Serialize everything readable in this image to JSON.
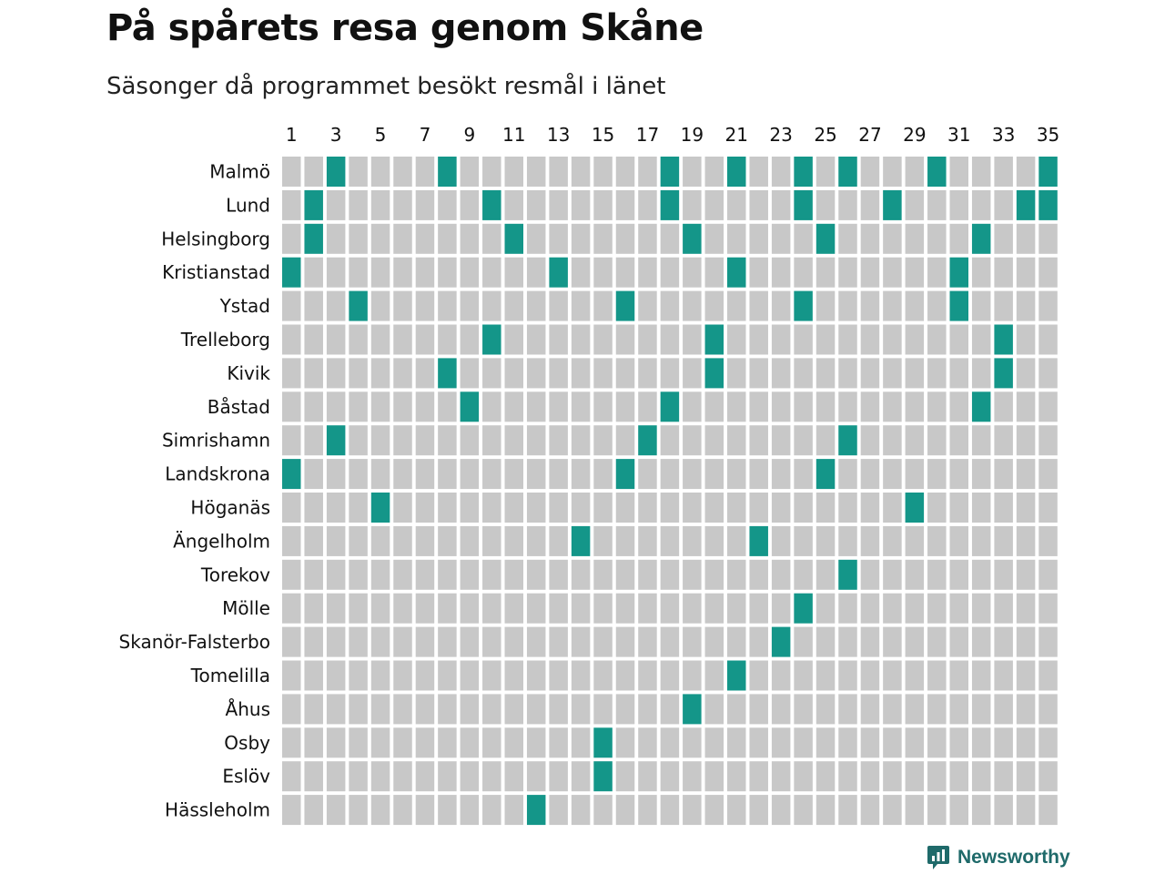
{
  "header": {
    "title": "På spårets resa genom Skåne",
    "subtitle": "Säsonger då programmet besökt resmål i länet"
  },
  "branding": {
    "name": "Newsworthy",
    "icon": "newsworthy-logo-icon"
  },
  "colors": {
    "visited": "#149689",
    "not_visited": "#c8c8c8",
    "brand": "#1f6a6a"
  },
  "chart_data": {
    "type": "heatmap",
    "x_tick_labels": [
      "1",
      "3",
      "5",
      "7",
      "9",
      "11",
      "13",
      "15",
      "17",
      "19",
      "21",
      "23",
      "25",
      "27",
      "29",
      "31",
      "33",
      "35"
    ],
    "seasons": [
      1,
      2,
      3,
      4,
      5,
      6,
      7,
      8,
      9,
      10,
      11,
      12,
      13,
      14,
      15,
      16,
      17,
      18,
      19,
      20,
      21,
      22,
      23,
      24,
      25,
      26,
      27,
      28,
      29,
      30,
      31,
      32,
      33,
      34,
      35
    ],
    "rows": [
      {
        "place": "Malmö",
        "visited_seasons": [
          3,
          8,
          18,
          21,
          24,
          26,
          30,
          35
        ]
      },
      {
        "place": "Lund",
        "visited_seasons": [
          2,
          10,
          18,
          24,
          28,
          34,
          35
        ]
      },
      {
        "place": "Helsingborg",
        "visited_seasons": [
          2,
          11,
          19,
          25,
          32
        ]
      },
      {
        "place": "Kristianstad",
        "visited_seasons": [
          1,
          13,
          21,
          31
        ]
      },
      {
        "place": "Ystad",
        "visited_seasons": [
          4,
          16,
          24,
          31
        ]
      },
      {
        "place": "Trelleborg",
        "visited_seasons": [
          10,
          20,
          33
        ]
      },
      {
        "place": "Kivik",
        "visited_seasons": [
          8,
          20,
          33
        ]
      },
      {
        "place": "Båstad",
        "visited_seasons": [
          9,
          18,
          32
        ]
      },
      {
        "place": "Simrishamn",
        "visited_seasons": [
          3,
          17,
          26
        ]
      },
      {
        "place": "Landskrona",
        "visited_seasons": [
          1,
          16,
          25
        ]
      },
      {
        "place": "Höganäs",
        "visited_seasons": [
          5,
          29
        ]
      },
      {
        "place": "Ängelholm",
        "visited_seasons": [
          14,
          22
        ]
      },
      {
        "place": "Torekov",
        "visited_seasons": [
          26
        ]
      },
      {
        "place": "Mölle",
        "visited_seasons": [
          24
        ]
      },
      {
        "place": "Skanör-Falsterbo",
        "visited_seasons": [
          23
        ]
      },
      {
        "place": "Tomelilla",
        "visited_seasons": [
          21
        ]
      },
      {
        "place": "Åhus",
        "visited_seasons": [
          19
        ]
      },
      {
        "place": "Osby",
        "visited_seasons": [
          15
        ]
      },
      {
        "place": "Eslöv",
        "visited_seasons": [
          15
        ]
      },
      {
        "place": "Hässleholm",
        "visited_seasons": [
          12
        ]
      }
    ]
  }
}
